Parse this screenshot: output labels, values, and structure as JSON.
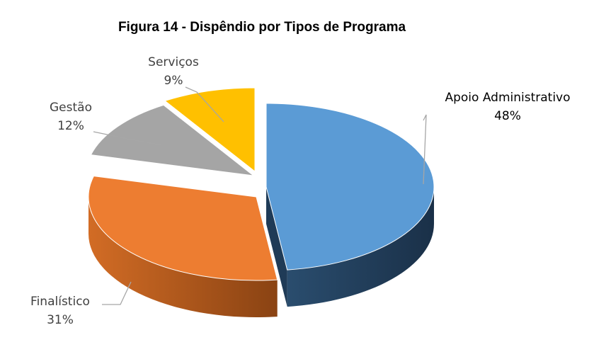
{
  "chart_data": {
    "type": "pie",
    "style": "3d-exploded",
    "title": "Figura 14 - Dispêndio por Tipos de Programa",
    "slices": [
      {
        "name": "Apoio Administrativo",
        "value": 48,
        "label": "48%",
        "color": "#5B9BD5",
        "side_color": "#1F3B57"
      },
      {
        "name": "Finalístico",
        "value": 31,
        "label": "31%",
        "color": "#ED7D31",
        "side_color": "#9A4A14"
      },
      {
        "name": "Gestão",
        "value": 12,
        "label": "12%",
        "color": "#A5A5A5",
        "side_color": "#5E5E5E"
      },
      {
        "name": "Serviços",
        "value": 9,
        "label": "9%",
        "color": "#FFC000",
        "side_color": "#8C6A00"
      }
    ]
  }
}
